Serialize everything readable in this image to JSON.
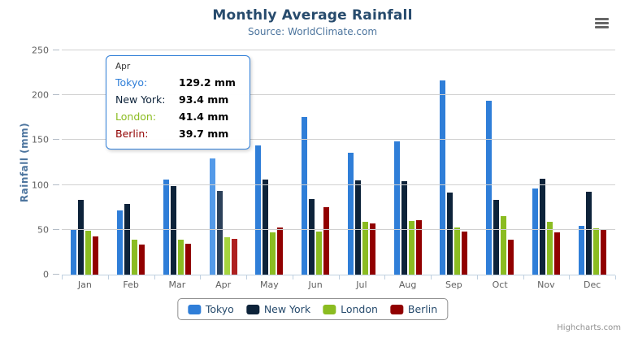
{
  "header": {
    "title": "Monthly Average Rainfall",
    "subtitle": "Source: WorldClimate.com"
  },
  "y_axis": {
    "title": "Rainfall (mm)"
  },
  "credits": {
    "label": "Highcharts.com"
  },
  "icons": {
    "export_menu": "hamburger-icon"
  },
  "colors": {
    "title_text": "#274b6d",
    "subtitle_text": "#4d759e",
    "axis_label": "#606060",
    "grid_line": "#d0d0d0",
    "axis_line": "#c0d0e0",
    "legend_border": "#909090",
    "tooltip_border": "#2f7ed8"
  },
  "chart_data": {
    "type": "bar",
    "title": "Monthly Average Rainfall",
    "subtitle": "Source: WorldClimate.com",
    "xlabel": "",
    "ylabel": "Rainfall (mm)",
    "ylim": [
      0,
      250
    ],
    "yticks": [
      0,
      50,
      100,
      150,
      200,
      250
    ],
    "grid": true,
    "legend_position": "bottom",
    "hover_category": "Apr",
    "categories": [
      "Jan",
      "Feb",
      "Mar",
      "Apr",
      "May",
      "Jun",
      "Jul",
      "Aug",
      "Sep",
      "Oct",
      "Nov",
      "Dec"
    ],
    "series": [
      {
        "name": "Tokyo",
        "color": "#2f7ed8",
        "hover_color": "#549ae8",
        "values": [
          49.9,
          71.5,
          106.4,
          129.2,
          144.0,
          176.0,
          135.6,
          148.5,
          216.4,
          194.1,
          95.6,
          54.4
        ]
      },
      {
        "name": "New York",
        "color": "#0d233a",
        "hover_color": "#2c415a",
        "values": [
          83.6,
          78.8,
          98.5,
          93.4,
          106.0,
          84.5,
          105.0,
          104.3,
          91.2,
          83.5,
          106.6,
          92.3
        ]
      },
      {
        "name": "London",
        "color": "#8bbc21",
        "hover_color": "#a6d53e",
        "values": [
          48.9,
          38.8,
          39.3,
          41.4,
          47.0,
          48.3,
          59.0,
          59.6,
          52.4,
          65.2,
          59.3,
          51.2
        ]
      },
      {
        "name": "Berlin",
        "color": "#910000",
        "hover_color": "#ae2020",
        "values": [
          42.4,
          33.2,
          34.5,
          39.7,
          52.6,
          75.5,
          57.4,
          60.4,
          47.6,
          39.1,
          46.8,
          51.1
        ]
      }
    ]
  },
  "tooltip": {
    "title": "Apr",
    "rows": [
      {
        "name": "Tokyo",
        "label": "Tokyo:",
        "value": "129.2 mm"
      },
      {
        "name": "New York",
        "label": "New York:",
        "value": "93.4 mm"
      },
      {
        "name": "London",
        "label": "London:",
        "value": "41.4 mm"
      },
      {
        "name": "Berlin",
        "label": "Berlin:",
        "value": "39.7 mm"
      }
    ]
  }
}
